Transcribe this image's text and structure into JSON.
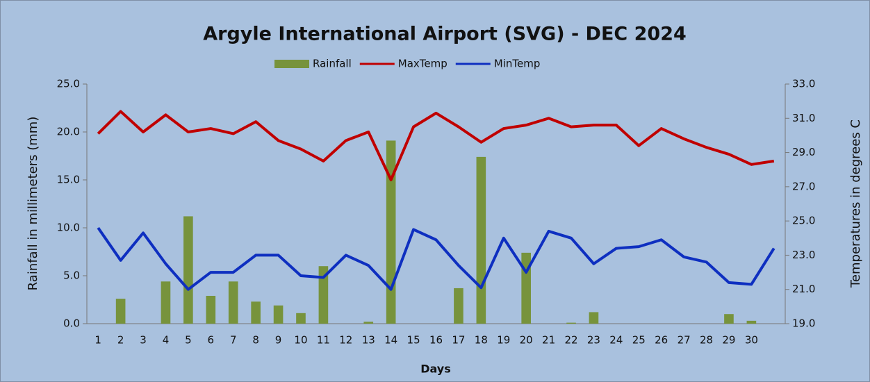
{
  "chart_data": {
    "type": "combo",
    "title": "Argyle International Airport (SVG) - DEC 2024",
    "x_label": "Days",
    "y_label": "Rainfall in millimeters (mm)",
    "y2_label": "Temperatures  in degrees C",
    "categories": [
      "1",
      "2",
      "3",
      "4",
      "5",
      "6",
      "7",
      "8",
      "9",
      "10",
      "11",
      "12",
      "13",
      "14",
      "15",
      "16",
      "17",
      "18",
      "19",
      "20",
      "21",
      "22",
      "23",
      "24",
      "25",
      "26",
      "27",
      "28",
      "29",
      "30",
      null
    ],
    "series": [
      {
        "name": "Rainfall",
        "type": "bar",
        "color": "#77933c",
        "values": [
          0,
          2.6,
          0,
          4.4,
          11.2,
          2.9,
          4.4,
          2.3,
          1.9,
          1.1,
          6.0,
          0,
          0.2,
          19.1,
          0,
          0,
          3.7,
          17.4,
          0,
          7.4,
          0,
          0.1,
          1.2,
          0,
          0,
          0,
          0,
          0,
          1.0,
          0.3,
          0
        ]
      },
      {
        "name": "MaxTemp",
        "type": "line",
        "axis": "y2",
        "color": "#c00000",
        "values": [
          30.1,
          31.4,
          30.2,
          31.2,
          30.2,
          30.4,
          30.1,
          30.8,
          29.7,
          29.2,
          28.5,
          29.7,
          30.2,
          27.4,
          30.5,
          31.3,
          30.5,
          29.6,
          30.4,
          30.6,
          31.0,
          30.5,
          30.6,
          30.6,
          29.4,
          30.4,
          29.8,
          29.3,
          28.9,
          28.3,
          28.5
        ]
      },
      {
        "name": "MinTemp",
        "type": "line",
        "axis": "y2",
        "color": "#0e2fc0",
        "values": [
          24.6,
          22.7,
          24.3,
          22.5,
          21.0,
          22.0,
          22.0,
          23.0,
          23.0,
          21.8,
          21.7,
          23.0,
          22.4,
          21.0,
          24.5,
          23.9,
          22.4,
          21.1,
          24.0,
          22.0,
          24.4,
          24.0,
          22.5,
          23.4,
          23.5,
          23.9,
          22.9,
          22.6,
          21.4,
          21.3,
          23.4
        ]
      }
    ],
    "ylim": [
      0,
      25
    ],
    "yticks": [
      {
        "value": 0,
        "label": "0.0"
      },
      {
        "value": 5,
        "label": "5.0"
      },
      {
        "value": 10,
        "label": "10.0"
      },
      {
        "value": 15,
        "label": "15.0"
      },
      {
        "value": 20,
        "label": "20.0"
      },
      {
        "value": 25,
        "label": "25.0"
      }
    ],
    "y2lim": [
      19,
      33
    ],
    "y2ticks": [
      {
        "value": 19,
        "label": "19.0"
      },
      {
        "value": 21,
        "label": "21.0"
      },
      {
        "value": 23,
        "label": "23.0"
      },
      {
        "value": 25,
        "label": "25.0"
      },
      {
        "value": 27,
        "label": "27.0"
      },
      {
        "value": 29,
        "label": "29.0"
      },
      {
        "value": 31,
        "label": "31.0"
      },
      {
        "value": 33,
        "label": "33.0"
      }
    ],
    "legend": "top",
    "grid": false
  }
}
